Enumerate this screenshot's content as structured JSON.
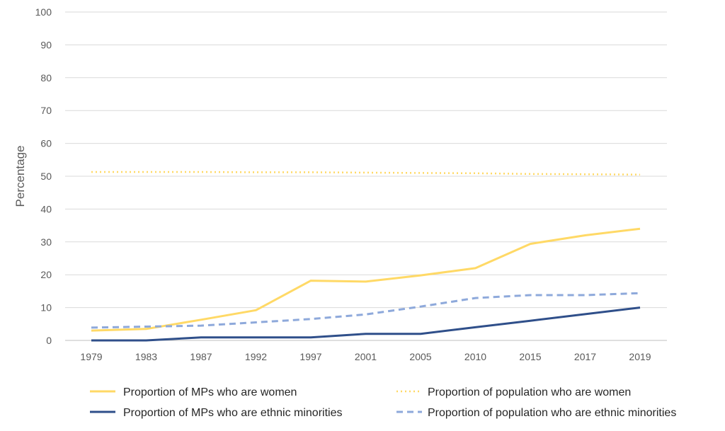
{
  "chart_data": {
    "type": "line",
    "title": "",
    "xlabel": "",
    "ylabel": "Percentage",
    "ylim": [
      0,
      100
    ],
    "yticks": [
      0,
      10,
      20,
      30,
      40,
      50,
      60,
      70,
      80,
      90,
      100
    ],
    "grid": "horizontal",
    "legend_position": "bottom",
    "categories": [
      "1979",
      "1983",
      "1987",
      "1992",
      "1997",
      "2001",
      "2005",
      "2010",
      "2015",
      "2017",
      "2019"
    ],
    "series": [
      {
        "name": "Proportion of MPs who are women",
        "color": "#FFD966",
        "style": "solid",
        "values": [
          3,
          3.5,
          6.3,
          9.2,
          18.2,
          17.9,
          19.8,
          22,
          29.4,
          32,
          34
        ]
      },
      {
        "name": "Proportion of population who are women",
        "color": "#FFD966",
        "style": "dotted",
        "values": [
          51.3,
          51.3,
          51.3,
          51.2,
          51.2,
          51.1,
          51,
          50.9,
          50.7,
          50.6,
          50.5
        ]
      },
      {
        "name": "Proportion of MPs who are ethnic minorities",
        "color": "#2F4F8A",
        "style": "solid",
        "values": [
          0,
          0,
          0.9,
          0.9,
          0.9,
          2,
          2,
          4,
          6,
          8,
          10
        ]
      },
      {
        "name": "Proportion of population who are ethnic minorities",
        "color": "#8EA9DB",
        "style": "dashed",
        "values": [
          3.9,
          4.2,
          4.5,
          5.5,
          6.5,
          7.9,
          10.3,
          12.9,
          13.8,
          13.8,
          14.4
        ]
      }
    ]
  }
}
